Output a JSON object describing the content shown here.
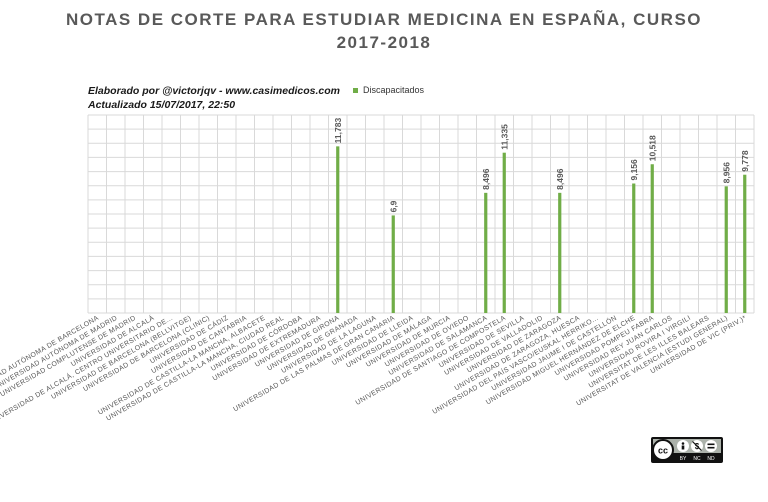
{
  "header": {
    "title_line1": "NOTAS DE CORTE PARA ESTUDIAR MEDICINA EN ESPAÑA, CURSO",
    "title_line2": "2017-2018",
    "credit_line1": "Elaborado por @victorjqv - www.casimedicos.com",
    "credit_line2": "Actualizado 15/07/2017, 22:50"
  },
  "license": {
    "icons": [
      "cc-icon",
      "by-icon",
      "nc-icon",
      "nd-icon"
    ],
    "labels": [
      "BY",
      "NC",
      "ND"
    ]
  },
  "colors": {
    "bar": "#70ad47",
    "grid": "#d9d9d9",
    "title": "#595959",
    "label": "#595959"
  },
  "chart_data": {
    "type": "bar",
    "title": "NOTAS DE CORTE PARA ESTUDIAR MEDICINA EN ESPAÑA, CURSO 2017-2018",
    "series": [
      {
        "name": "Discapacitados",
        "color": "#70ad47"
      }
    ],
    "ylim": [
      0,
      14
    ],
    "grid": true,
    "categories": [
      "UNIVERSIDAD AUTÓNOMA DE BARCELONA",
      "UNIVERSIDAD AUTÓNOMA DE MADRID",
      "UNIVERSIDAD COMPLUTENSE DE MADRID",
      "UNIVERSIDAD DE ALCALÁ",
      "UNIVERSIDAD DE ALCALÁ, CENTRO UNIVERSITARIO DE...",
      "UNIVERSIDAD DE BARCELONA (BELLVITGE)",
      "UNIVERSIDAD DE BARCELONA (CLINIC)",
      "UNIVERSIDAD DE CÁDIZ",
      "UNIVERSIDAD DE CANTABRIA",
      "UNIVERSIDAD DE CASTILLA-LA MANCHA, ALBACETE",
      "UNIVERSIDAD DE CASTILLA-LA MANCHA, CIUDAD REAL",
      "UNIVERSIDAD DE CÓRDOBA",
      "UNIVERSIDAD DE EXTREMADURA",
      "UNIVERSIDAD DE GIRONA",
      "UNIVERSIDAD DE GRANADA",
      "UNIVERSIDAD DE LA LAGUNA",
      "UNIVERSIDAD DE LAS PALMAS DE GRAN CANARIA",
      "UNIVERSIDAD DE LLEIDA",
      "UNIVERSIDAD DE MÁLAGA",
      "UNIVERSIDAD DE MURCIA",
      "UNIVERSIDAD DE OVIEDO",
      "UNIVERSIDAD DE SALAMANCA",
      "UNIVERSIDAD DE SANTIAGO DE COMPOSTELA",
      "UNIVERSIDAD DE SEVILLA",
      "UNIVERSIDAD DE VALLADOLID",
      "UNIVERSIDAD DE ZARAGOZA",
      "UNIVERSIDAD DE ZARAGOZA, HUESCA",
      "UNIVERSIDAD DEL PAÍS VASCO/EUSKAL HERRIKO...",
      "UNIVERSIDAD JAUME I DE CASTELLÓN",
      "UNIVERSIDAD MIGUEL HERNÁNDEZ DE ELCHE",
      "UNIVERSIDAD POMPEU FABRA",
      "UNIVERSIDAD REY JUAN CARLOS",
      "UNIVERSIDAD ROVIRA I VIRGILI",
      "UNIVERSITAT DE LES ILLES BALEARS",
      "UNIVERSITAT DE VALENCIA (ESTUDI GENERAL)",
      "UNIVERSIDAD DE VIC (PRIV.)*"
    ],
    "values": [
      null,
      null,
      null,
      null,
      null,
      null,
      null,
      null,
      null,
      null,
      null,
      null,
      null,
      11.783,
      null,
      null,
      6.9,
      null,
      null,
      null,
      null,
      8.496,
      11.335,
      null,
      null,
      8.496,
      null,
      null,
      null,
      9.156,
      10.518,
      null,
      null,
      null,
      8.956,
      9.778
    ],
    "data_labels": [
      "",
      "",
      "",
      "",
      "",
      "",
      "",
      "",
      "",
      "",
      "",
      "",
      "",
      "11,783",
      "",
      "",
      "6,9",
      "",
      "",
      "",
      "",
      "8,496",
      "11,335",
      "",
      "",
      "8,496",
      "",
      "",
      "",
      "9,156",
      "10,518",
      "",
      "",
      "",
      "8,956",
      "9,778"
    ]
  }
}
